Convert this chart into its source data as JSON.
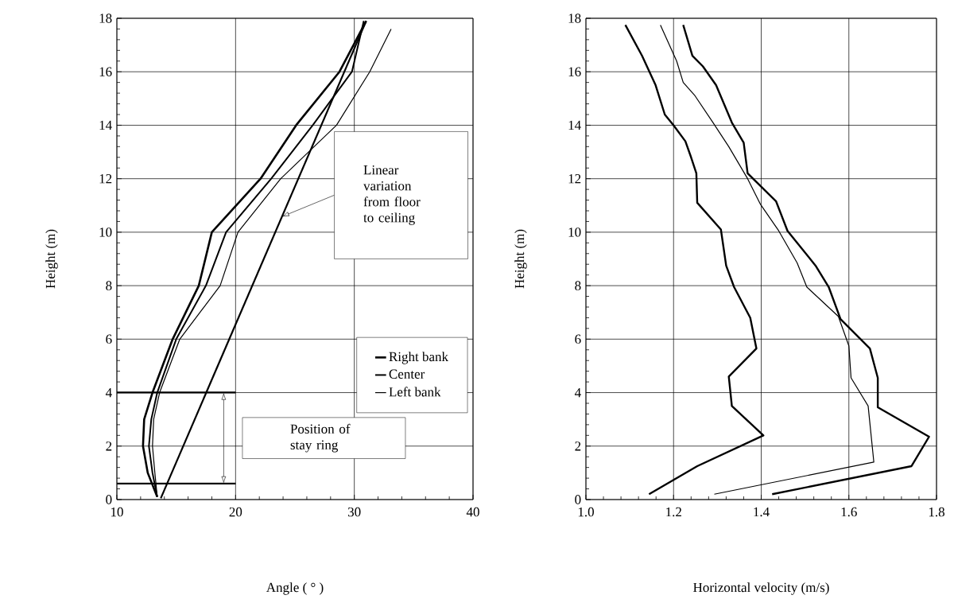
{
  "chart_data": [
    {
      "type": "line",
      "xlabel": "Angle ( ° )",
      "ylabel": "Height (m)",
      "xlim": [
        10,
        40
      ],
      "xticks": [
        10,
        20,
        30,
        40
      ],
      "ylim": [
        0,
        18
      ],
      "yticks": [
        0,
        2,
        4,
        6,
        8,
        10,
        12,
        14,
        16,
        18
      ],
      "grid": true,
      "legend": "right",
      "series": [
        {
          "name": "Right bank",
          "color": "#000000",
          "x": [
            13.4,
            12.6,
            12.2,
            12.3,
            13.0,
            14.7,
            16.9,
            18.0,
            22.1,
            25.1,
            28.75,
            31.0
          ],
          "values": [
            0.1,
            1,
            2,
            3,
            4,
            6,
            8,
            10,
            12,
            14,
            16,
            17.9
          ]
        },
        {
          "name": "Center",
          "color": "#000000",
          "x": [
            13.4,
            13.0,
            12.7,
            12.9,
            13.4,
            15.0,
            17.5,
            19.2,
            23.0,
            26.5,
            29.8,
            30.8
          ],
          "values": [
            0.1,
            1,
            2,
            3,
            4,
            6,
            8,
            10,
            12,
            14,
            16,
            17.9
          ]
        },
        {
          "name": "Left bank",
          "color": "#000000",
          "x": [
            13.4,
            13.2,
            13.0,
            13.1,
            13.6,
            15.3,
            18.7,
            20.2,
            23.8,
            28.5,
            31.3,
            33.1
          ],
          "values": [
            0.1,
            1,
            2,
            3,
            4,
            6,
            8,
            10,
            12,
            14,
            16,
            17.6
          ]
        },
        {
          "color": "#000000",
          "x": [
            13.7,
            31.0
          ],
          "values": [
            0.05,
            17.9
          ]
        }
      ],
      "ref_lines": [
        {
          "axis": "y",
          "value": 0.6
        },
        {
          "axis": "y",
          "value": 4
        }
      ],
      "annotations": [
        "Linear variation from floor to ceiling",
        "Position of stay ring"
      ]
    },
    {
      "type": "line",
      "xlabel": "Horizontal velocity (m/s)",
      "ylabel": "Height (m)",
      "xlim": [
        1.0,
        1.8
      ],
      "xticks": [
        {
          "value": 1.0,
          "label": "1.0"
        },
        1.2,
        1.4,
        1.6,
        1.8
      ],
      "ylim": [
        0,
        18
      ],
      "yticks": [
        0,
        2,
        4,
        6,
        8,
        10,
        12,
        14,
        16,
        18
      ],
      "grid": true,
      "series": [
        {
          "color": "#000000",
          "x": [
            1.09,
            1.128,
            1.159,
            1.18,
            1.2,
            1.227,
            1.24,
            1.252,
            1.254,
            1.308,
            1.32,
            1.338,
            1.375,
            1.389,
            1.326,
            1.333,
            1.405,
            1.254,
            1.144
          ],
          "values": [
            17.75,
            16.6,
            15.5,
            14.4,
            14.0,
            13.4,
            12.8,
            12.2,
            11.1,
            10.1,
            8.75,
            7.95,
            6.8,
            5.65,
            4.6,
            3.5,
            2.4,
            1.25,
            0.2
          ]
        },
        {
          "color": "#000000",
          "x": [
            1.17,
            1.207,
            1.222,
            1.249,
            1.29,
            1.326,
            1.369,
            1.398,
            1.44,
            1.482,
            1.504,
            1.576,
            1.6,
            1.605,
            1.644,
            1.657,
            1.293
          ],
          "values": [
            17.75,
            16.4,
            15.6,
            15.1,
            14.1,
            13.2,
            12.0,
            11.05,
            10.05,
            8.85,
            7.95,
            6.85,
            5.75,
            4.55,
            3.5,
            1.4,
            0.2
          ]
        },
        {
          "color": "#000000",
          "x": [
            1.222,
            1.243,
            1.267,
            1.297,
            1.333,
            1.36,
            1.369,
            1.434,
            1.46,
            1.524,
            1.554,
            1.581,
            1.648,
            1.666,
            1.666,
            1.783,
            1.743,
            1.425
          ],
          "values": [
            17.75,
            16.6,
            16.2,
            15.5,
            14.1,
            13.35,
            12.2,
            11.15,
            10.05,
            8.75,
            7.95,
            6.75,
            5.65,
            4.55,
            3.45,
            2.35,
            1.25,
            0.2
          ]
        }
      ]
    }
  ]
}
